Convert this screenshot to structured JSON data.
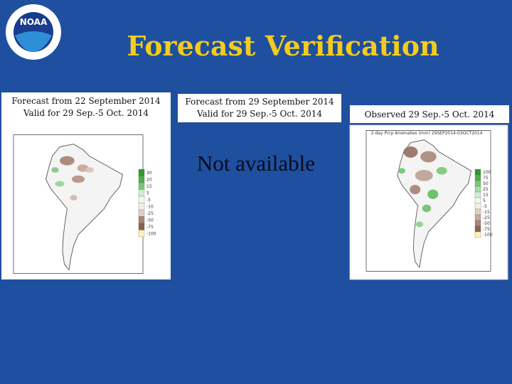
{
  "header": {
    "logo_text": "NOAA",
    "title": "Forecast Verification"
  },
  "panels": [
    {
      "label_lines": [
        "Forecast from 22 September 2014",
        "Valid for 29 Sep.-5 Oct. 2014"
      ],
      "legend": [
        "30",
        "20",
        "15",
        "5",
        "-5",
        "-10",
        "-25",
        "-50",
        "-75",
        "-100"
      ]
    },
    {
      "label_lines": [
        "Forecast from 29 September 2014",
        "Valid for 29 Sep.-5 Oct. 2014"
      ],
      "message": "Not available"
    },
    {
      "label_lines": [
        "Observed 29 Sep.-5 Oct. 2014"
      ],
      "map_title": "2-day Prcp Anomalies (mm) 29SEP2014-03OCT2014",
      "legend": [
        "100",
        "75",
        "50",
        "25",
        "15",
        "5",
        "-5",
        "-15",
        "-25",
        "-50",
        "-75",
        "-100"
      ]
    }
  ]
}
